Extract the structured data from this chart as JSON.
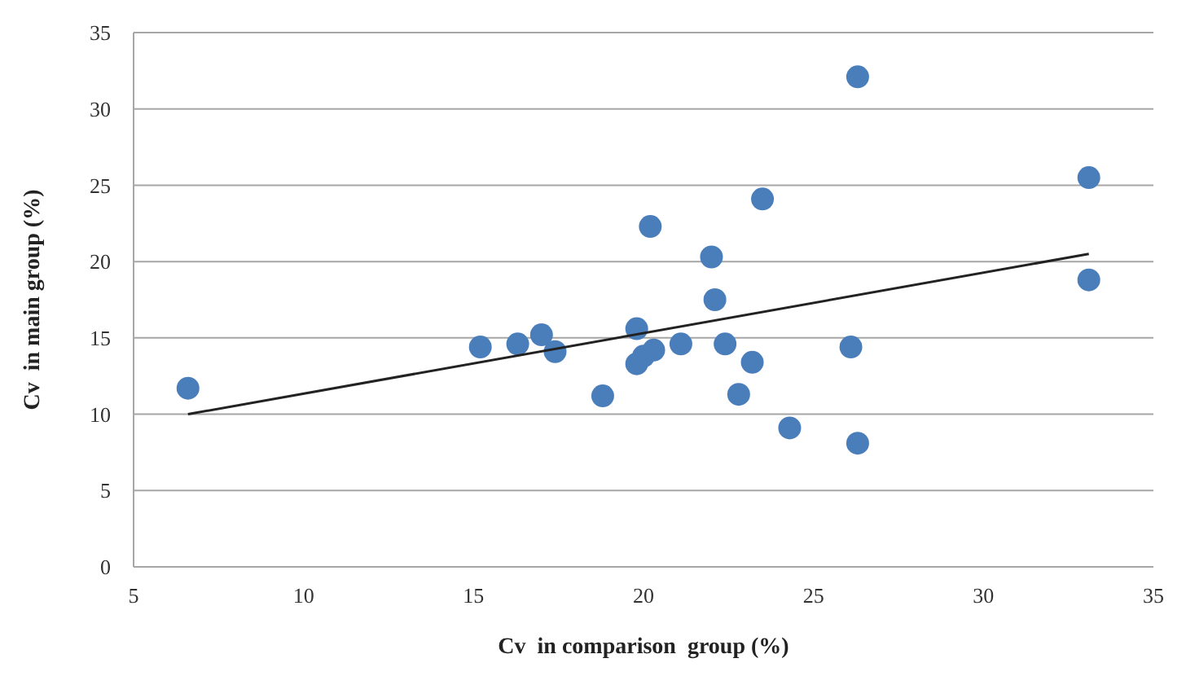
{
  "chart_data": {
    "type": "scatter",
    "xlabel": "Cv  in comparison  group (%)",
    "ylabel": "Cv  in main group (%)",
    "xlim": [
      5,
      35
    ],
    "xticks": [
      5,
      10,
      15,
      20,
      25,
      30,
      35
    ],
    "ylim": [
      0,
      35
    ],
    "yticks": [
      0,
      5,
      10,
      15,
      20,
      25,
      30,
      35
    ],
    "grid": "y",
    "series": [
      {
        "marker": "circle",
        "color": "#4a7ebb",
        "x": [
          6.6,
          15.2,
          16.3,
          17.0,
          17.4,
          18.8,
          19.8,
          19.8,
          20.0,
          20.3,
          21.1,
          20.2,
          22.0,
          22.1,
          22.4,
          23.2,
          22.8,
          23.5,
          24.3,
          26.1,
          26.3,
          26.3,
          33.1,
          33.1
        ],
        "values": [
          11.7,
          14.4,
          14.6,
          15.2,
          14.1,
          11.2,
          15.6,
          13.3,
          13.8,
          14.2,
          14.6,
          22.3,
          20.3,
          17.5,
          14.6,
          13.4,
          11.3,
          24.1,
          9.1,
          14.4,
          32.1,
          8.1,
          25.5,
          18.8
        ]
      },
      {
        "type": "line",
        "color": "#222222",
        "x": [
          6.6,
          33.1
        ],
        "values": [
          10.0,
          20.5
        ]
      }
    ]
  }
}
